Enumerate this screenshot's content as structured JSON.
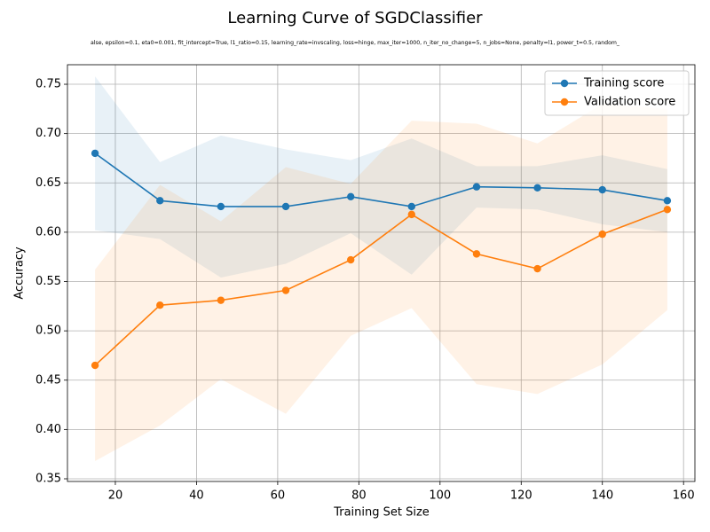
{
  "chart_data": {
    "type": "line",
    "title": "Learning Curve of SGDClassifier",
    "subtitle": "alse, epsilon=0.1, eta0=0.001, fit_intercept=True, l1_ratio=0.15, learning_rate=invscaling, loss=hinge, max_iter=1000, n_iter_no_change=5, n_jobs=None, penalty=l1, power_t=0.5, random_",
    "x_label": "Training Set Size",
    "y_label": "Accuracy",
    "x": [
      15,
      31,
      46,
      62,
      78,
      93,
      109,
      124,
      140,
      156
    ],
    "series": [
      {
        "name": "Training score",
        "color": "#1f77b4",
        "values": [
          0.68,
          0.632,
          0.626,
          0.626,
          0.636,
          0.626,
          0.646,
          0.645,
          0.643,
          0.632
        ],
        "band_upper": [
          0.758,
          0.671,
          0.698,
          0.684,
          0.673,
          0.695,
          0.667,
          0.667,
          0.678,
          0.664
        ],
        "band_lower": [
          0.602,
          0.593,
          0.554,
          0.568,
          0.599,
          0.557,
          0.625,
          0.623,
          0.608,
          0.6
        ]
      },
      {
        "name": "Validation score",
        "color": "#ff7f0e",
        "values": [
          0.465,
          0.526,
          0.531,
          0.541,
          0.572,
          0.618,
          0.578,
          0.563,
          0.598,
          0.623
        ],
        "band_upper": [
          0.562,
          0.648,
          0.611,
          0.666,
          0.649,
          0.713,
          0.71,
          0.69,
          0.73,
          0.725
        ],
        "band_lower": [
          0.368,
          0.404,
          0.451,
          0.416,
          0.495,
          0.523,
          0.446,
          0.436,
          0.466,
          0.521
        ]
      }
    ],
    "xlim": [
      8.2,
      162.8
    ],
    "ylim": [
      0.3473,
      0.7698
    ],
    "xticks": [
      20,
      40,
      60,
      80,
      100,
      120,
      140,
      160
    ],
    "yticks": [
      0.35,
      {
        "value": 0.4,
        "label": "0.40"
      },
      0.45,
      {
        "value": 0.5,
        "label": "0.50"
      },
      0.55,
      {
        "value": 0.6,
        "label": "0.60"
      },
      0.65,
      {
        "value": 0.7,
        "label": "0.70"
      },
      0.75
    ],
    "grid": true,
    "legend": "upper right"
  }
}
